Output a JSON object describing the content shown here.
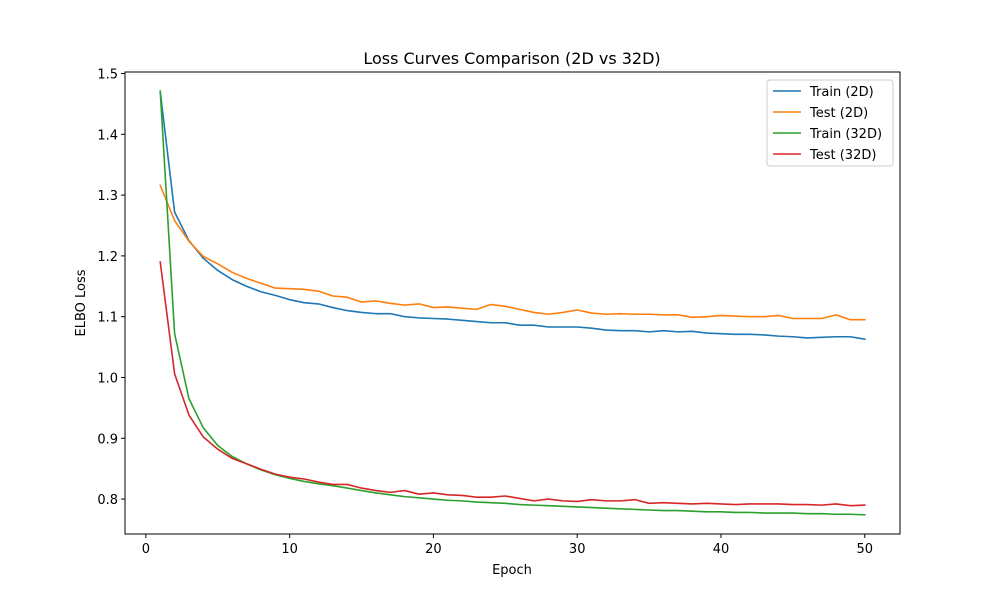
{
  "chart_data": {
    "type": "line",
    "title": "Loss Curves Comparison (2D vs 32D)",
    "xlabel": "Epoch",
    "ylabel": "ELBO Loss",
    "xlim": [
      -1.45,
      52.45
    ],
    "ylim": [
      0.7425,
      1.5025
    ],
    "xticks": [
      0,
      10,
      20,
      30,
      40,
      50
    ],
    "yticks": [
      0.8,
      0.9,
      1.0,
      1.1,
      1.2,
      1.3,
      1.4,
      1.5
    ],
    "ytick_labels": [
      "0.8",
      "0.9",
      "1.0",
      "1.1",
      "1.2",
      "1.3",
      "1.4",
      "1.5"
    ],
    "grid": false,
    "legend_position": "upper right",
    "x": [
      1,
      2,
      3,
      4,
      5,
      6,
      7,
      8,
      9,
      10,
      11,
      12,
      13,
      14,
      15,
      16,
      17,
      18,
      19,
      20,
      21,
      22,
      23,
      24,
      25,
      26,
      27,
      28,
      29,
      30,
      31,
      32,
      33,
      34,
      35,
      36,
      37,
      38,
      39,
      40,
      41,
      42,
      43,
      44,
      45,
      46,
      47,
      48,
      49,
      50
    ],
    "series": [
      {
        "name": "Train (2D)",
        "color": "#1f77b4",
        "values": [
          1.47,
          1.272,
          1.225,
          1.196,
          1.176,
          1.161,
          1.15,
          1.141,
          1.135,
          1.128,
          1.123,
          1.121,
          1.115,
          1.11,
          1.107,
          1.105,
          1.105,
          1.1,
          1.098,
          1.097,
          1.096,
          1.094,
          1.092,
          1.09,
          1.09,
          1.086,
          1.086,
          1.083,
          1.083,
          1.083,
          1.081,
          1.078,
          1.077,
          1.077,
          1.075,
          1.077,
          1.075,
          1.076,
          1.073,
          1.072,
          1.071,
          1.071,
          1.07,
          1.068,
          1.067,
          1.065,
          1.066,
          1.067,
          1.067,
          1.063
        ]
      },
      {
        "name": "Test (2D)",
        "color": "#ff7f0e",
        "values": [
          1.316,
          1.258,
          1.224,
          1.199,
          1.187,
          1.173,
          1.163,
          1.155,
          1.147,
          1.146,
          1.145,
          1.142,
          1.134,
          1.132,
          1.124,
          1.126,
          1.122,
          1.119,
          1.121,
          1.115,
          1.116,
          1.114,
          1.112,
          1.12,
          1.117,
          1.112,
          1.107,
          1.104,
          1.107,
          1.111,
          1.106,
          1.104,
          1.105,
          1.104,
          1.104,
          1.103,
          1.103,
          1.099,
          1.1,
          1.102,
          1.101,
          1.1,
          1.1,
          1.102,
          1.097,
          1.097,
          1.097,
          1.103,
          1.095,
          1.095
        ]
      },
      {
        "name": "Train (32D)",
        "color": "#2ca02c",
        "values": [
          1.471,
          1.072,
          0.965,
          0.917,
          0.888,
          0.87,
          0.858,
          0.848,
          0.84,
          0.834,
          0.829,
          0.825,
          0.822,
          0.818,
          0.814,
          0.81,
          0.807,
          0.804,
          0.802,
          0.8,
          0.798,
          0.797,
          0.795,
          0.794,
          0.793,
          0.791,
          0.79,
          0.789,
          0.788,
          0.787,
          0.786,
          0.785,
          0.784,
          0.783,
          0.782,
          0.781,
          0.781,
          0.78,
          0.779,
          0.779,
          0.778,
          0.778,
          0.777,
          0.777,
          0.777,
          0.776,
          0.776,
          0.775,
          0.775,
          0.774
        ]
      },
      {
        "name": "Test (32D)",
        "color": "#d62728",
        "values": [
          1.19,
          1.006,
          0.938,
          0.902,
          0.882,
          0.867,
          0.858,
          0.849,
          0.841,
          0.836,
          0.833,
          0.828,
          0.824,
          0.824,
          0.818,
          0.814,
          0.811,
          0.814,
          0.808,
          0.81,
          0.807,
          0.806,
          0.803,
          0.803,
          0.805,
          0.801,
          0.797,
          0.8,
          0.797,
          0.796,
          0.799,
          0.797,
          0.797,
          0.799,
          0.793,
          0.794,
          0.793,
          0.792,
          0.793,
          0.792,
          0.791,
          0.792,
          0.792,
          0.792,
          0.791,
          0.791,
          0.79,
          0.792,
          0.789,
          0.79
        ]
      }
    ]
  }
}
